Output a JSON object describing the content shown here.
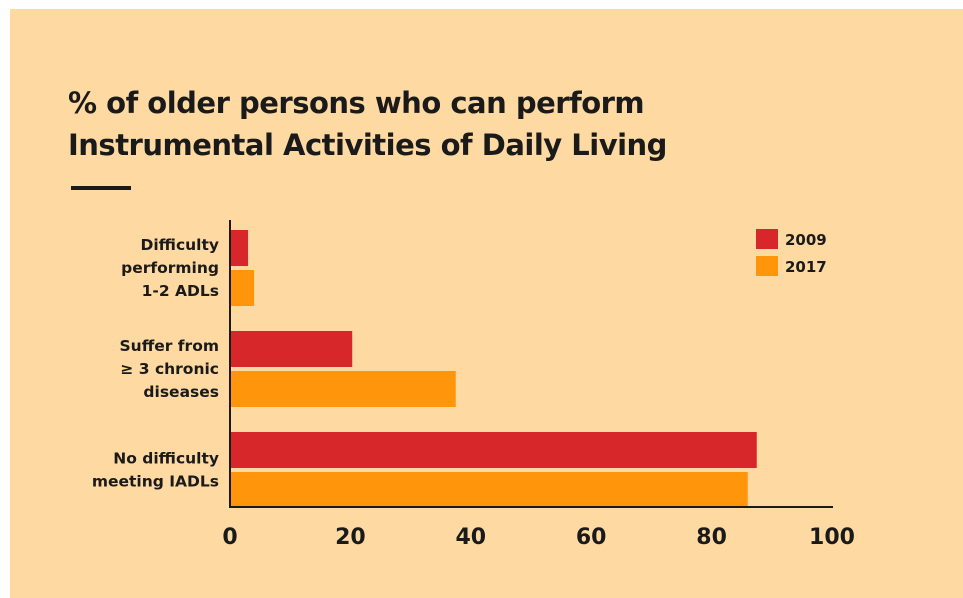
{
  "colors": {
    "background": "#fed9a2",
    "series_2009": "#d7272a",
    "series_2017": "#ff950b",
    "text": "#1a1a1a"
  },
  "chart_data": {
    "type": "bar",
    "orientation": "horizontal",
    "title": "% of older persons who can perform Instrumental Activities of Daily Living",
    "title_lines": [
      "% of older persons who can perform",
      "Instrumental Activities of Daily Living"
    ],
    "categories": [
      [
        "Difficulty",
        "performing",
        "1-2 ADLs"
      ],
      [
        "Suffer from",
        "≥ 3 chronic",
        "diseases"
      ],
      [
        "No difficulty",
        "meeting IADLs"
      ]
    ],
    "series": [
      {
        "name": "2009",
        "color": "#d7272a",
        "values": [
          3,
          20.3,
          87.5
        ]
      },
      {
        "name": "2017",
        "color": "#ff950b",
        "values": [
          4,
          37.5,
          86
        ]
      }
    ],
    "xlim": [
      0,
      100
    ],
    "xticks": [
      "0",
      "20",
      "40",
      "60",
      "80",
      "100"
    ],
    "xlabel": "",
    "ylabel": "",
    "grid": false,
    "legend_position": "top-right"
  }
}
